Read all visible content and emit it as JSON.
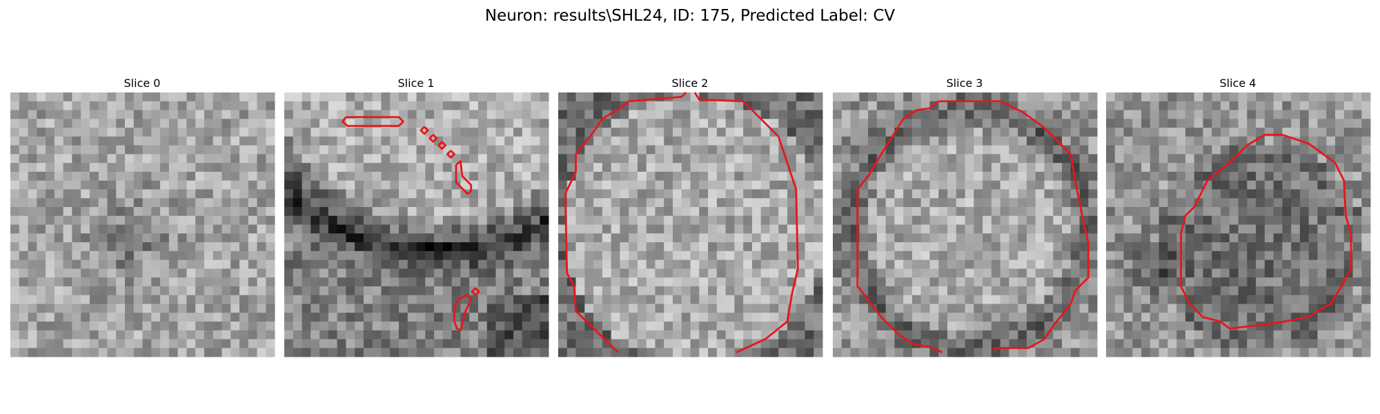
{
  "header": {
    "title": "Neuron: results\\SHL24, ID: 175, Predicted Label: CV"
  },
  "panels": [
    {
      "title": "Slice 0"
    },
    {
      "title": "Slice 1"
    },
    {
      "title": "Slice 2"
    },
    {
      "title": "Slice 3"
    },
    {
      "title": "Slice 4"
    }
  ]
}
